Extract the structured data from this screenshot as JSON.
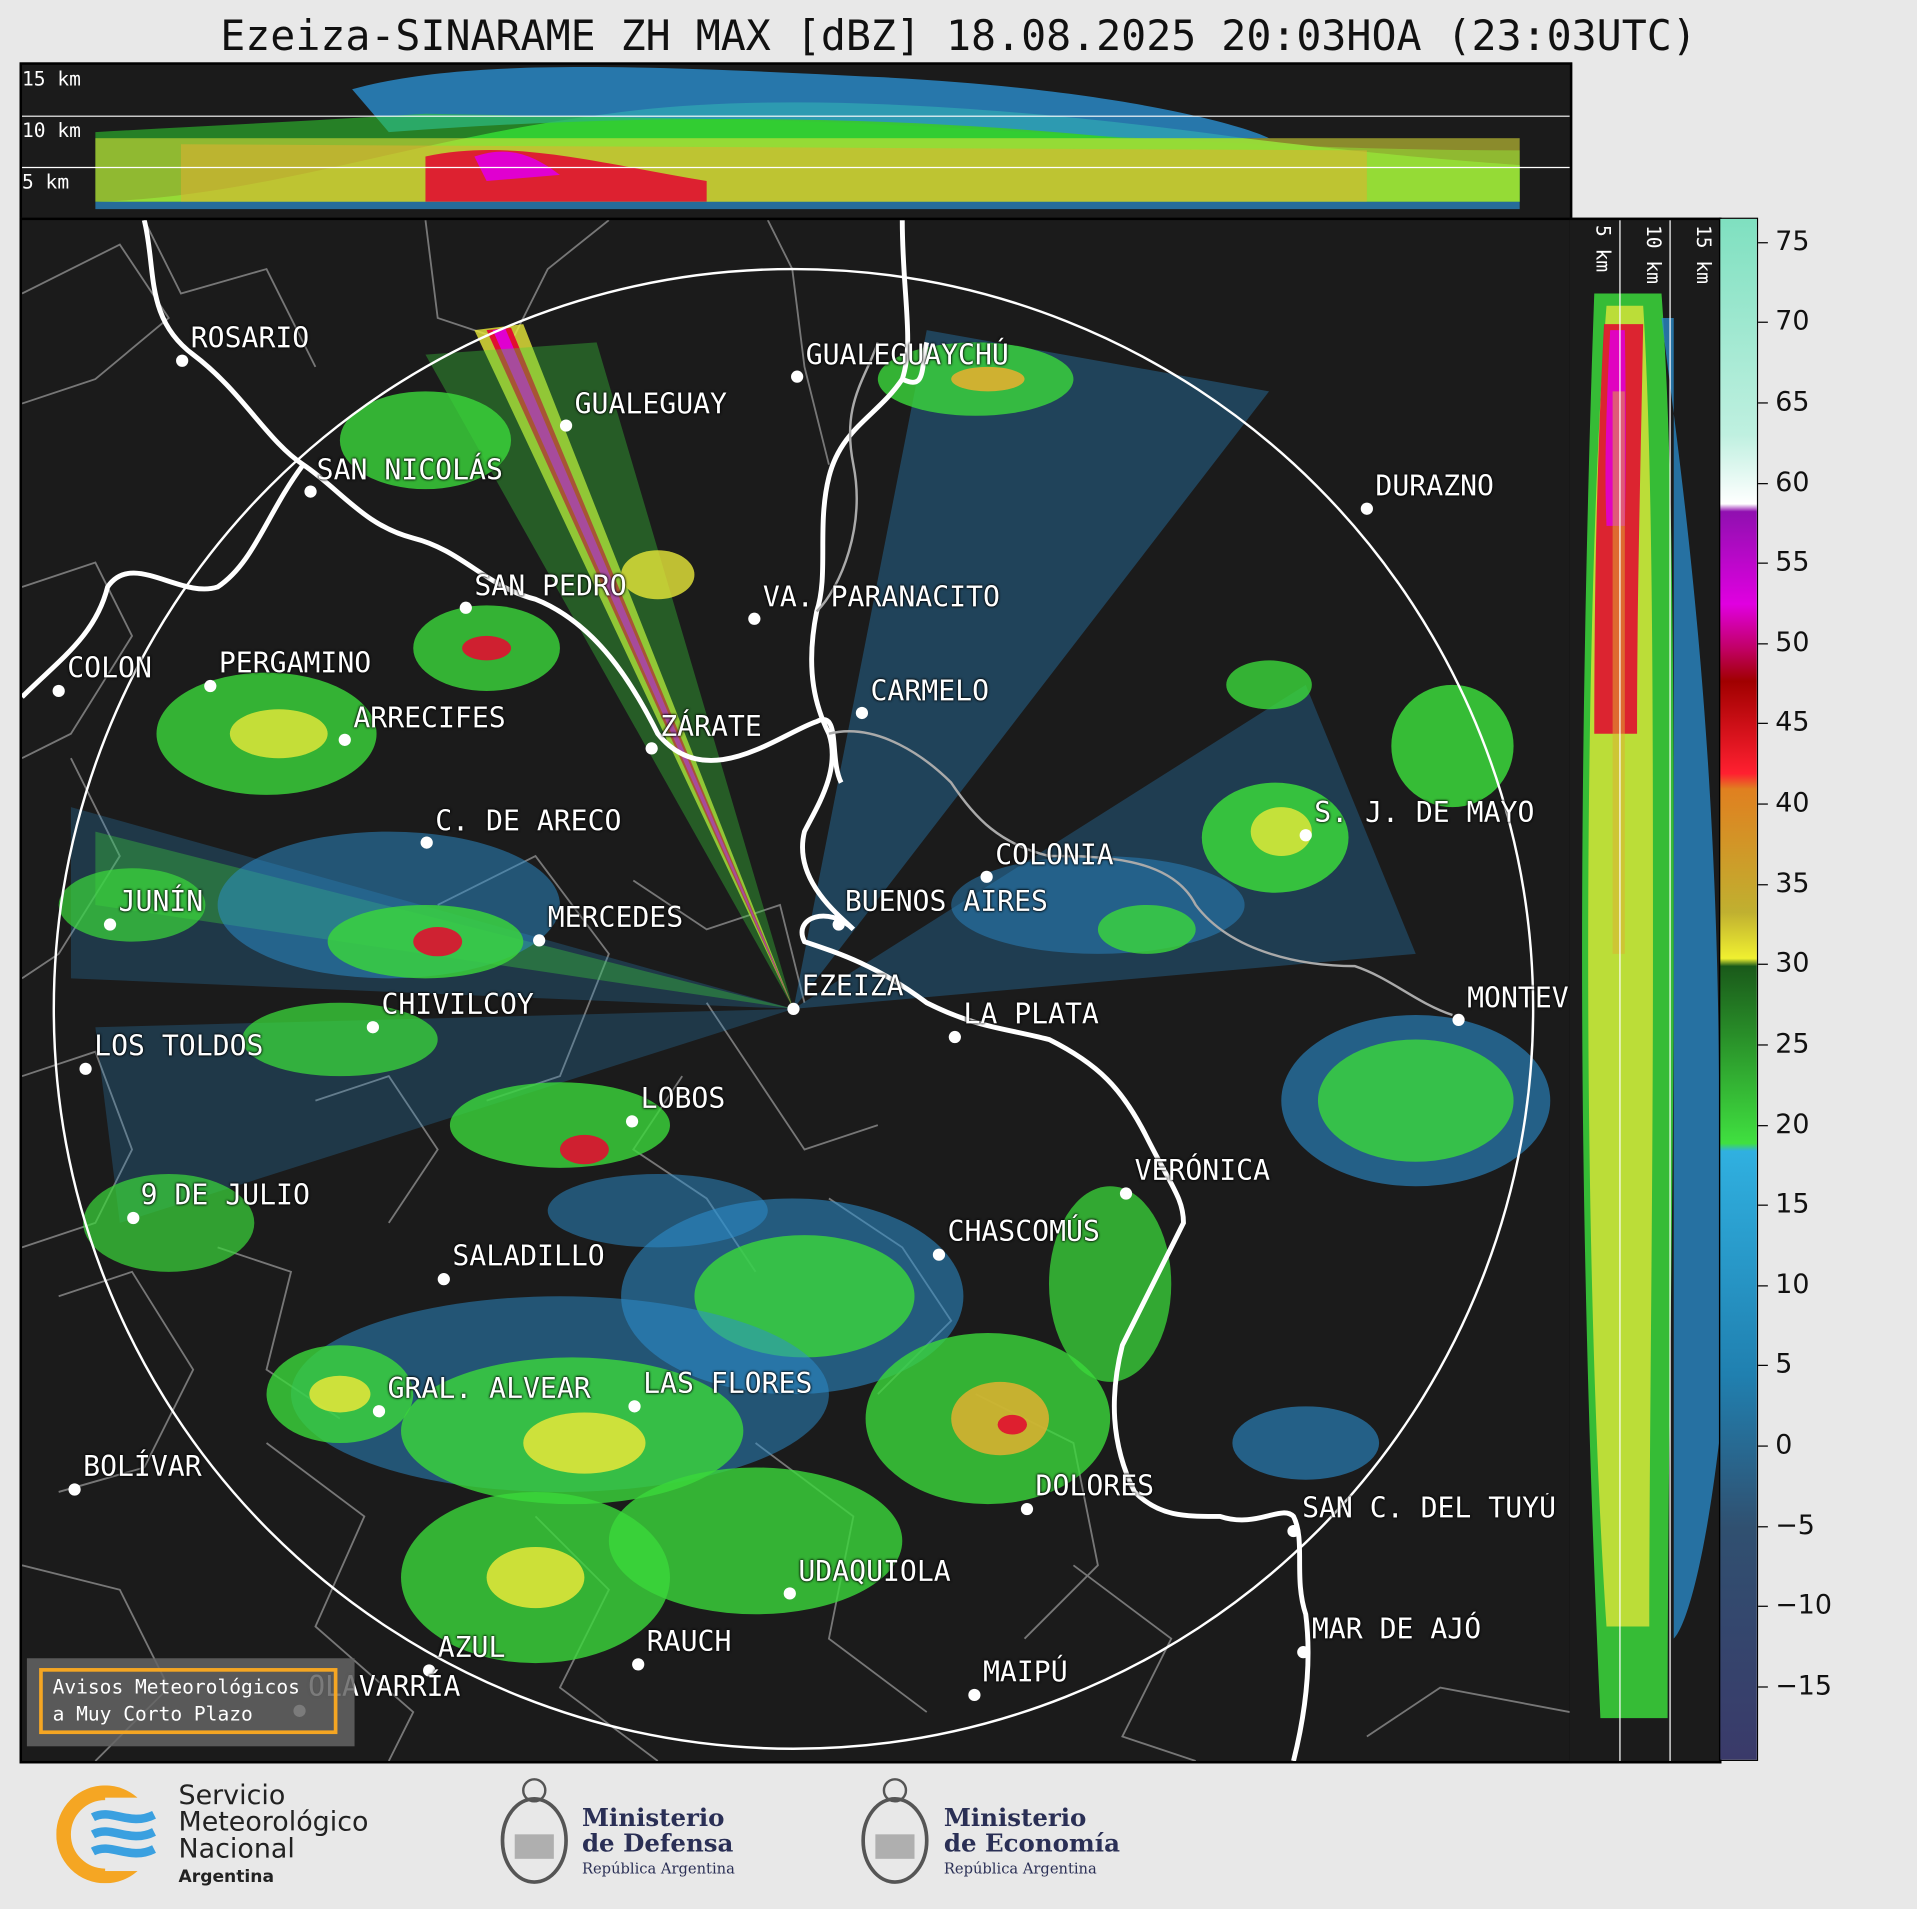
{
  "title": "Ezeiza-SINARAME ZH MAX [dBZ] 18.08.2025 20:03HOA (23:03UTC)",
  "height_labels": [
    "15 km",
    "10 km",
    "5 km"
  ],
  "colorbar": {
    "ticks": [
      "75",
      "70",
      "65",
      "60",
      "55",
      "50",
      "45",
      "40",
      "35",
      "30",
      "25",
      "20",
      "15",
      "10",
      "5",
      "0",
      "−10",
      "−15"
    ],
    "tick_values": [
      75,
      70,
      65,
      60,
      55,
      50,
      45,
      40,
      35,
      30,
      25,
      20,
      15,
      10,
      5,
      0,
      -10,
      -15
    ],
    "neg5_label": "−5"
  },
  "cities": [
    {
      "name": "ROSARIO"
    },
    {
      "name": "GUALEGUAYCHÚ"
    },
    {
      "name": "GUALEGUAY"
    },
    {
      "name": "SAN NICOLÁS"
    },
    {
      "name": "DURAZNO"
    },
    {
      "name": "SAN PEDRO"
    },
    {
      "name": "VA. PARANACITO"
    },
    {
      "name": "COLON"
    },
    {
      "name": "PERGAMINO"
    },
    {
      "name": "CARMELO"
    },
    {
      "name": "ARRECIFES"
    },
    {
      "name": "ZÁRATE"
    },
    {
      "name": "S. J. DE MAYO"
    },
    {
      "name": "C. DE ARECO"
    },
    {
      "name": "COLONIA"
    },
    {
      "name": "BUENOS AIRES"
    },
    {
      "name": "JUNÍN"
    },
    {
      "name": "MERCEDES"
    },
    {
      "name": "MONTEVIDEO"
    },
    {
      "name": "EZEIZA"
    },
    {
      "name": "LA PLATA"
    },
    {
      "name": "CHIVILCOY"
    },
    {
      "name": "LOS TOLDOS"
    },
    {
      "name": "LOBOS"
    },
    {
      "name": "VERÓNICA"
    },
    {
      "name": "9 DE JULIO"
    },
    {
      "name": "CHASCOMÚS"
    },
    {
      "name": "SALADILLO"
    },
    {
      "name": "GRAL. ALVEAR"
    },
    {
      "name": "LAS FLORES"
    },
    {
      "name": "BOLÍVAR"
    },
    {
      "name": "DOLORES"
    },
    {
      "name": "SAN C. DEL TUYÚ"
    },
    {
      "name": "UDAQUIOLA"
    },
    {
      "name": "MAR DE AJÓ"
    },
    {
      "name": "AZUL"
    },
    {
      "name": "RAUCH"
    },
    {
      "name": "OLAVARRÍA"
    },
    {
      "name": "MAIPÚ"
    }
  ],
  "avisos": {
    "line1": "Avisos Meteorológicos",
    "line2": "a Muy Corto Plazo"
  },
  "footer": {
    "smn": {
      "line1": "Servicio",
      "line2": "Meteorológico",
      "line3": "Nacional",
      "line4": "Argentina"
    },
    "defensa": {
      "line1": "Ministerio",
      "line2": "de Defensa",
      "line3": "República Argentina"
    },
    "economia": {
      "line1": "Ministerio",
      "line2": "de Economía",
      "line3": "República Argentina"
    }
  },
  "colors": {
    "background": "#1b1b1b",
    "ring": "#ffffff",
    "accent_box": "#f5a623"
  }
}
